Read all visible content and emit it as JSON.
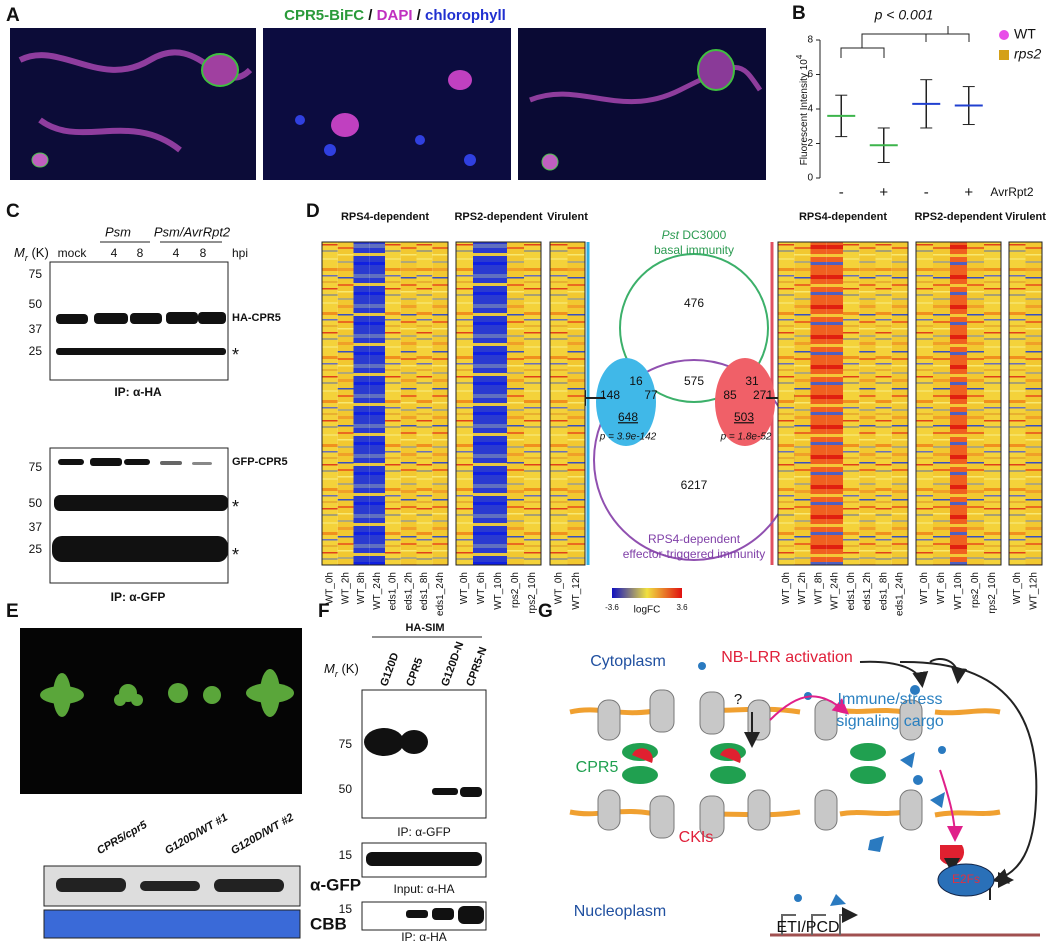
{
  "panel_a": {
    "label": "A",
    "title": [
      "CPR5-BiFC",
      " / ",
      "DAPI",
      " / ",
      "chlorophyll"
    ]
  },
  "chart_data": {
    "type": "dot",
    "panel_label": "B",
    "annotation": "p < 0.001",
    "ylabel": "Fluorescent Intensity 10",
    "ylabel_exponent": "4",
    "xlabel": "AvrRpt2",
    "categories": [
      "-",
      "+",
      "-",
      "+"
    ],
    "series": [
      {
        "name": "WT",
        "color": "#e84de8",
        "mean_color": "#3cb44b",
        "values": [
          3.6,
          1.9,
          null,
          null
        ],
        "errors": [
          1.2,
          1.0,
          null,
          null
        ]
      },
      {
        "name": "rps2",
        "color": "#d4a017",
        "mean_color": "#2040d0",
        "values": [
          null,
          null,
          4.3,
          4.2
        ],
        "errors": [
          null,
          null,
          1.4,
          1.1
        ]
      }
    ],
    "ylim": [
      0,
      8
    ],
    "yticks": [
      0,
      2,
      4,
      6,
      8
    ]
  },
  "panel_c": {
    "label": "C",
    "mr": "M",
    "mr_sub": "r",
    "mr_unit": " (K)",
    "groups": [
      "Psm",
      "Psm/AvrRpt2"
    ],
    "lanes": [
      "mock",
      "4",
      "8",
      "4",
      "8"
    ],
    "unit": "hpi",
    "blots": [
      {
        "markers": [
          "75",
          "50",
          "37",
          "25"
        ],
        "bands": [
          "HA-CPR5",
          "*"
        ],
        "caption": "IP: α-HA"
      },
      {
        "markers": [
          "75",
          "50",
          "37",
          "25"
        ],
        "bands": [
          "GFP-CPR5",
          "*",
          "*"
        ],
        "caption": "IP: α-GFP"
      }
    ]
  },
  "panel_d": {
    "label": "D",
    "left": [
      {
        "title": "RPS4-dependent",
        "columns": [
          "WT_0h",
          "WT_2h",
          "WT_8h",
          "WT_24h",
          "eds1_0h",
          "eds1_2h",
          "eds1_8h",
          "eds1_24h"
        ]
      },
      {
        "title": "RPS2-dependent",
        "columns": [
          "WT_0h",
          "WT_6h",
          "WT_10h",
          "rps2_0h",
          "rps2_10h"
        ]
      },
      {
        "title": "Virulent",
        "columns": [
          "WT_0h",
          "WT_12h"
        ]
      }
    ],
    "right": [
      {
        "title": "RPS4-dependent",
        "columns": [
          "WT_0h",
          "WT_2h",
          "WT_8h",
          "WT_24h",
          "eds1_0h",
          "eds1_2h",
          "eds1_8h",
          "eds1_24h"
        ]
      },
      {
        "title": "RPS2-dependent",
        "columns": [
          "WT_0h",
          "WT_6h",
          "WT_10h",
          "rps2_0h",
          "rps2_10h"
        ]
      },
      {
        "title": "Virulent",
        "columns": [
          "WT_0h",
          "WT_12h"
        ]
      }
    ],
    "venn": {
      "pst": "Pst",
      "pst_rest": " DC3000",
      "green_label": "basal immunity",
      "purple_label": [
        "RPS4-dependent",
        "effector-triggered immunity"
      ],
      "green_only": "476",
      "green_purple": "575",
      "green_blue": "16",
      "blue_only_top": "148",
      "blue_purple": "77",
      "green_red": "31",
      "red_purple": "85",
      "red_only_top": "271",
      "blue": "648",
      "red": "503",
      "blue_p": "p = 3.9e-142",
      "red_p": "p = 1.8e-52",
      "purple_only": "6217"
    },
    "colorbar": {
      "min": "-3.6",
      "label": "logFC",
      "max": "3.6"
    }
  },
  "panel_e": {
    "label": "E",
    "lanes": [
      "CPR5/cpr5",
      "G120D/WT #1",
      "G120D/WT #2"
    ],
    "blots": [
      "α-GFP",
      "CBB"
    ]
  },
  "panel_f": {
    "label": "F",
    "header": "HA-SIM",
    "mr": "M",
    "mr_sub": "r",
    "mr_unit": " (K)",
    "lanes": [
      "G120D",
      "CPR5",
      "G120D-N",
      "CPR5-N"
    ],
    "markers": [
      "75",
      "50"
    ],
    "small_markers": [
      "15",
      "15"
    ],
    "captions": [
      "IP: α-GFP",
      "Input: α-HA",
      "IP: α-HA"
    ]
  },
  "panel_g": {
    "label": "G",
    "cytoplasm": "Cytoplasm",
    "nb_lrr": "NB-LRR activation",
    "question": "?",
    "cargo": [
      "Immune/stress",
      "signaling cargo"
    ],
    "cpr5": "CPR5",
    "ckis": "CKIs",
    "nucleoplasm": "Nucleoplasm",
    "eti": "ETI/PCD",
    "e2fs": "E2Fs"
  }
}
